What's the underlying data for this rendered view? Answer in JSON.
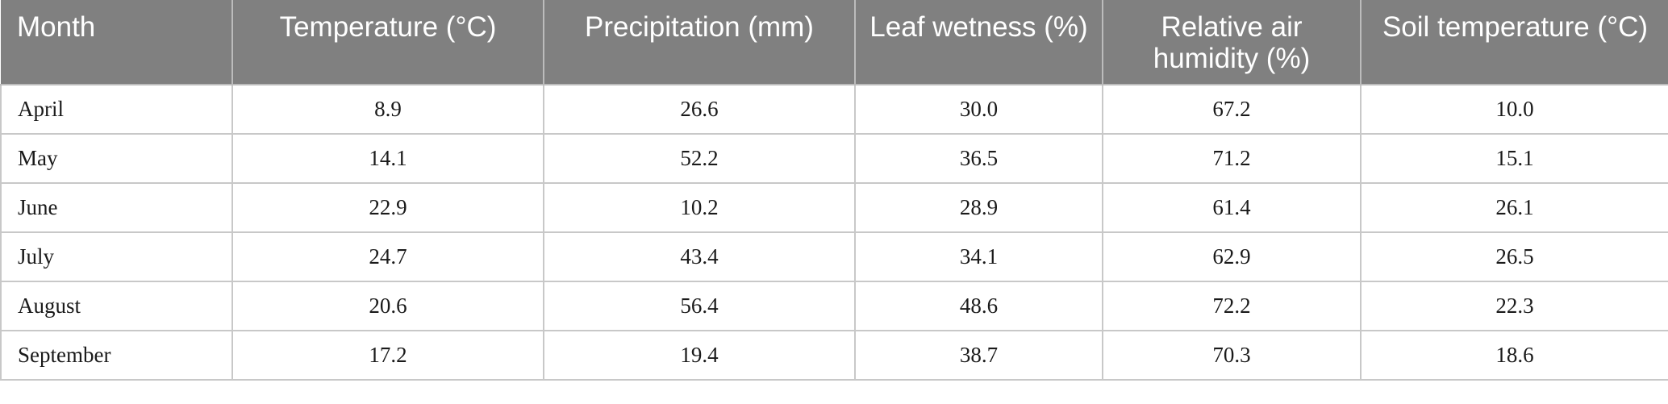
{
  "table": {
    "headers": [
      "Month",
      "Temperature (°C)",
      "Precipitation (mm)",
      "Leaf wetness (%)",
      "Relative air humidity (%)",
      "Soil temperature (°C)"
    ],
    "rows": [
      [
        "April",
        "8.9",
        "26.6",
        "30.0",
        "67.2",
        "10.0"
      ],
      [
        "May",
        "14.1",
        "52.2",
        "36.5",
        "71.2",
        "15.1"
      ],
      [
        "June",
        "22.9",
        "10.2",
        "28.9",
        "61.4",
        "26.1"
      ],
      [
        "July",
        "24.7",
        "43.4",
        "34.1",
        "62.9",
        "26.5"
      ],
      [
        "August",
        "20.6",
        "56.4",
        "48.6",
        "72.2",
        "22.3"
      ],
      [
        "September",
        "17.2",
        "19.4",
        "38.7",
        "70.3",
        "18.6"
      ]
    ]
  },
  "colors": {
    "header_background": "#808080",
    "header_text": "#ffffff",
    "grid_line": "#c8c8c8"
  }
}
